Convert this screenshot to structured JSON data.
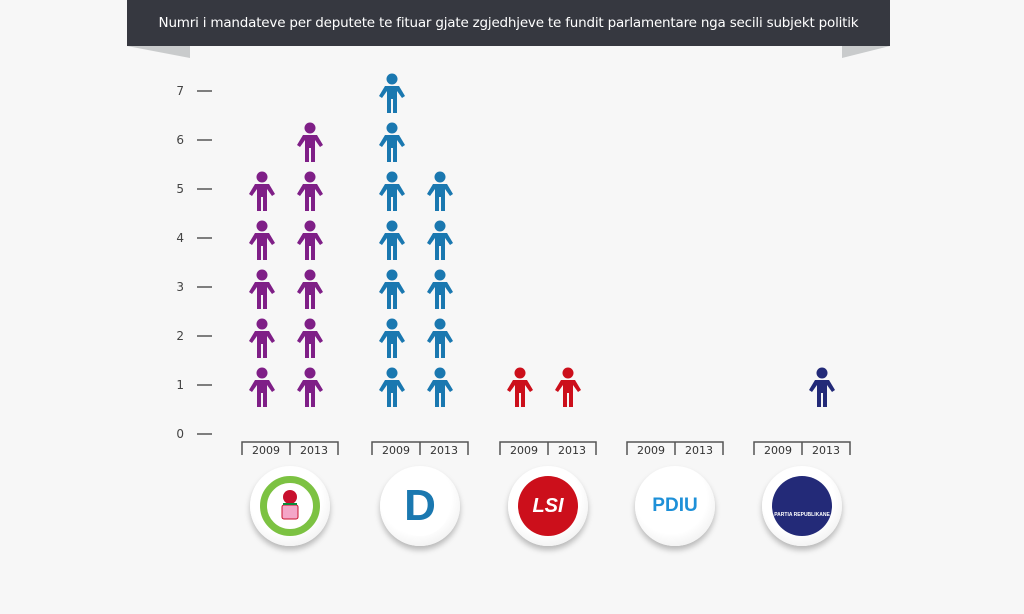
{
  "chart_data": {
    "type": "pictogram-bar",
    "title": "Numri i mandateve per deputete te fituar gjate zgjedhjeve te fundit parlamentare nga secili subjekt politik",
    "ylim": [
      0,
      7
    ],
    "yticks": [
      "0",
      "1",
      "2",
      "3",
      "4",
      "5",
      "6",
      "7"
    ],
    "categories": [
      "2009",
      "2013"
    ],
    "parties": [
      {
        "name": "Partia Socialiste e Shqiperise",
        "logo_text": "PARTIA SOCIALISTE E SHQIPERISE 1991",
        "color": "#7f1f87",
        "values": [
          5,
          6
        ]
      },
      {
        "name": "Partia Demokratike",
        "logo_text": "D",
        "color": "#1a78b0",
        "values": [
          7,
          5
        ]
      },
      {
        "name": "LSI",
        "logo_text": "LSI",
        "color": "#cc0f1b",
        "values": [
          1,
          1
        ]
      },
      {
        "name": "PDIU",
        "logo_text": "PDIU",
        "color": "#1e90d8",
        "values": [
          0,
          0
        ]
      },
      {
        "name": "Partia Republikane",
        "logo_text": "PARTIA REPUBLIKANE",
        "color": "#232a78",
        "values": [
          0,
          1
        ]
      }
    ],
    "grid": false
  }
}
